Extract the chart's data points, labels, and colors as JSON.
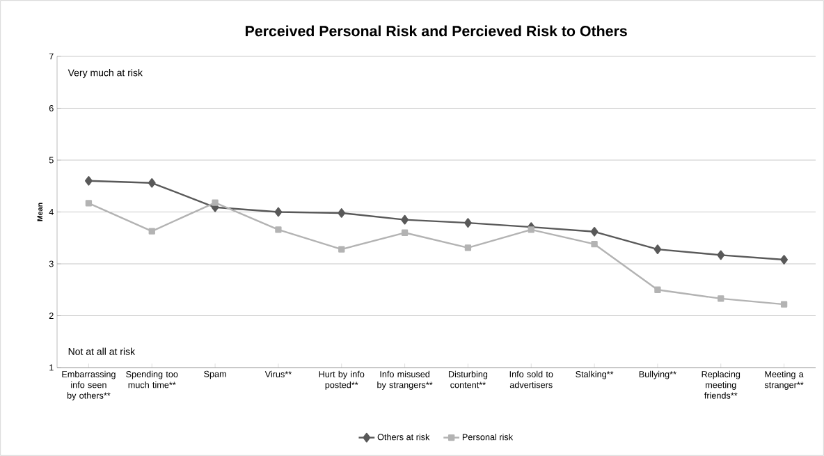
{
  "chart_data": {
    "type": "line",
    "title": "Perceived Personal Risk and Percieved Risk to Others",
    "ylabel": "Mean",
    "categories": [
      "Embarrassing info seen by others**",
      "Spending too much time**",
      "Spam",
      "Virus**",
      "Hurt by info posted**",
      "Info misused by strangers**",
      "Disturbing content**",
      "Info sold to advertisers",
      "Stalking**",
      "Bullying**",
      "Replacing meeting friends**",
      "Meeting a stranger**"
    ],
    "series": [
      {
        "name": "Others at risk",
        "color": "#595959",
        "marker": "diamond",
        "values": [
          4.6,
          4.56,
          4.09,
          4.0,
          3.98,
          3.85,
          3.79,
          3.71,
          3.62,
          3.28,
          3.17,
          3.08
        ]
      },
      {
        "name": "Personal risk",
        "color": "#b3b3b3",
        "marker": "square",
        "values": [
          4.17,
          3.63,
          4.18,
          3.66,
          3.28,
          3.6,
          3.31,
          3.66,
          3.38,
          2.5,
          2.33,
          2.22
        ]
      }
    ],
    "annotations": [
      "Very much at risk",
      "Not at all at risk"
    ],
    "ylim": [
      1,
      7
    ],
    "yticks": [
      1,
      2,
      3,
      4,
      5,
      6,
      7
    ],
    "grid": "y",
    "legend": "bottom"
  }
}
